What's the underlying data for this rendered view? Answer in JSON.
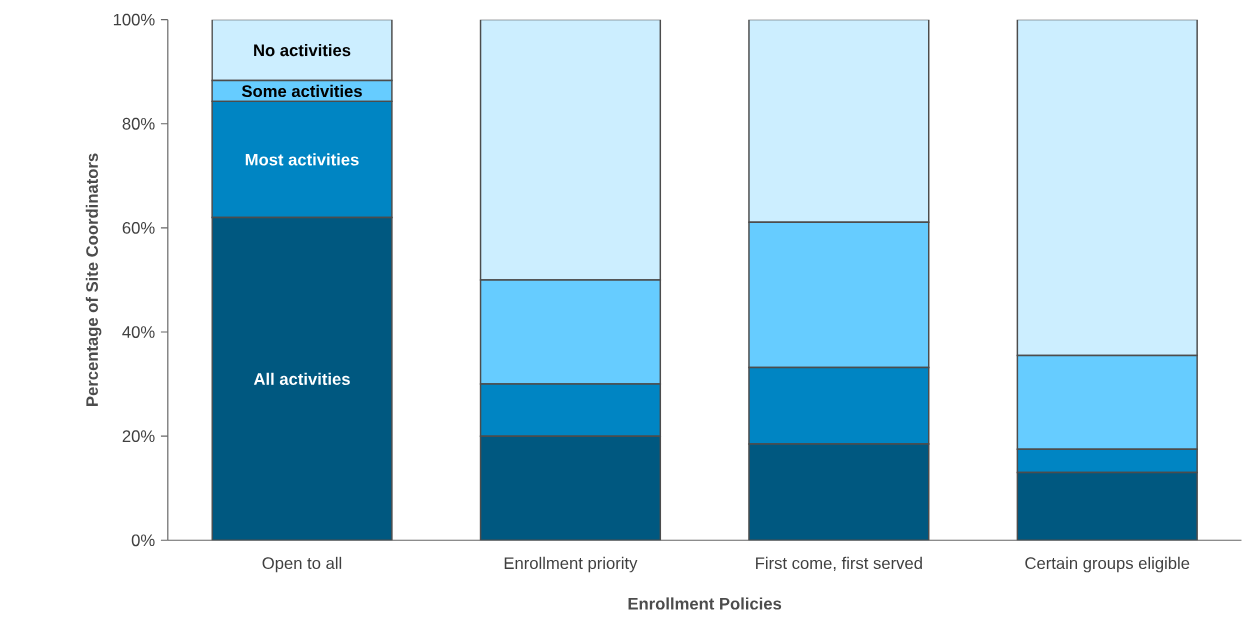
{
  "chart_data": {
    "type": "bar",
    "stacked": true,
    "xlabel": "Enrollment Policies",
    "ylabel": "Percentage of Site Coordinators",
    "categories": [
      "Open to all",
      "Enrollment priority",
      "First come, first served",
      "Certain groups eligible"
    ],
    "series": [
      {
        "name": "All activities",
        "color": "#005880",
        "values": [
          62,
          20,
          18.5,
          13
        ]
      },
      {
        "name": "Most activities",
        "color": "#0085c3",
        "values": [
          22.3,
          10,
          14.7,
          4.5
        ]
      },
      {
        "name": "Some activities",
        "color": "#66ccff",
        "values": [
          4,
          20,
          27.9,
          18
        ]
      },
      {
        "name": "No activities",
        "color": "#cceeff",
        "values": [
          11.7,
          50,
          38.9,
          64.5
        ]
      }
    ],
    "ylim": [
      0,
      100
    ],
    "yticks": [
      {
        "value": 0,
        "label": "0%"
      },
      {
        "value": 20,
        "label": "20%"
      },
      {
        "value": 40,
        "label": "40%"
      },
      {
        "value": 60,
        "label": "60%"
      },
      {
        "value": 80,
        "label": "80%"
      },
      {
        "value": 100,
        "label": "100%"
      }
    ],
    "grid": false,
    "legend": false
  }
}
